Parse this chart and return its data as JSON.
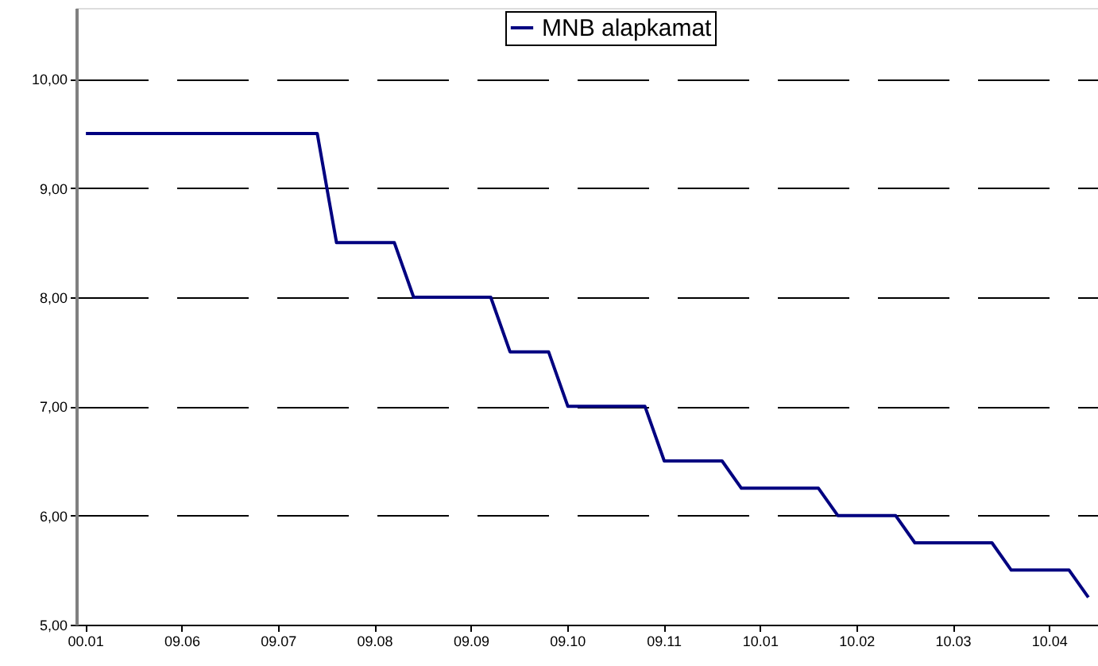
{
  "chart_data": {
    "type": "line",
    "categories": [
      "00.01",
      null,
      null,
      null,
      null,
      "09.06",
      null,
      null,
      null,
      null,
      "09.07",
      null,
      null,
      null,
      null,
      "09.08",
      null,
      null,
      null,
      null,
      "09.09",
      null,
      null,
      null,
      null,
      "09.10",
      null,
      null,
      null,
      null,
      "09.11",
      null,
      null,
      null,
      null,
      "10.01",
      null,
      null,
      null,
      null,
      "10.02",
      null,
      null,
      null,
      null,
      "10.03",
      null,
      null,
      null,
      null,
      "10.04",
      null,
      null
    ],
    "series": [
      {
        "name": "MNB alapkamat",
        "color": "#000080",
        "values": [
          9.5,
          9.5,
          9.5,
          9.5,
          9.5,
          9.5,
          9.5,
          9.5,
          9.5,
          9.5,
          9.5,
          9.5,
          9.5,
          8.5,
          8.5,
          8.5,
          8.5,
          8.0,
          8.0,
          8.0,
          8.0,
          8.0,
          7.5,
          7.5,
          7.5,
          7.0,
          7.0,
          7.0,
          7.0,
          7.0,
          6.5,
          6.5,
          6.5,
          6.5,
          6.25,
          6.25,
          6.25,
          6.25,
          6.25,
          6.0,
          6.0,
          6.0,
          6.0,
          5.75,
          5.75,
          5.75,
          5.75,
          5.75,
          5.5,
          5.5,
          5.5,
          5.5,
          5.25
        ]
      }
    ],
    "ylim": [
      5,
      10.65
    ],
    "yticks": [
      {
        "value": 5,
        "label": "5,00"
      },
      {
        "value": 6,
        "label": "6,00"
      },
      {
        "value": 7,
        "label": "7,00"
      },
      {
        "value": 8,
        "label": "8,00"
      },
      {
        "value": 9,
        "label": "9,00"
      },
      {
        "value": 10,
        "label": "10,00"
      }
    ],
    "grid": "y",
    "legend": "top",
    "line_style": "solid",
    "marker": "none"
  }
}
